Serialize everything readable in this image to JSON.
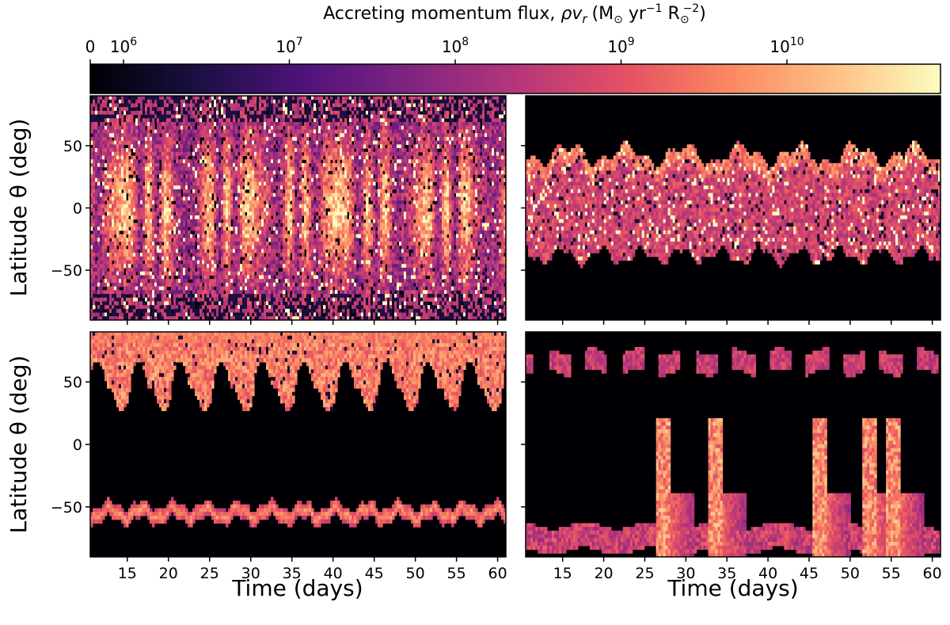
{
  "colorbar": {
    "title_main": "Accreting momentum flux, ",
    "title_var": "ρv",
    "title_sub": "r",
    "title_units": "(M",
    "title_units_rest": " yr",
    "title_exp1": "−1",
    "title_r": " R",
    "title_exp2": "−2",
    "title_close": ")",
    "colormap": "magma",
    "scale": "symlog",
    "ticks": [
      {
        "label": "0",
        "value": 0
      },
      {
        "label": "10",
        "exp": "6",
        "value": 1000000
      },
      {
        "label": "10",
        "exp": "7",
        "value": 10000000
      },
      {
        "label": "10",
        "exp": "8",
        "value": 100000000
      },
      {
        "label": "10",
        "exp": "9",
        "value": 1000000000
      },
      {
        "label": "10",
        "exp": "10",
        "value": 10000000000
      }
    ]
  },
  "chart_data": [
    {
      "type": "heatmap",
      "panel": "top-left",
      "ylabel": "Latitude θ (deg)",
      "xlabel": "",
      "xlim": [
        10.5,
        61
      ],
      "ylim": [
        -90,
        90
      ],
      "yticks": [
        50,
        0,
        -50
      ],
      "xticks": [
        15,
        20,
        25,
        30,
        35,
        40,
        45,
        50,
        55,
        60
      ],
      "xtick_labels_shown": false,
      "pattern": "accretion spread over all latitudes, brightest near equator"
    },
    {
      "type": "heatmap",
      "panel": "top-right",
      "ylabel": "",
      "xlabel": "",
      "xlim": [
        10.5,
        61
      ],
      "ylim": [
        -90,
        90
      ],
      "yticks": [
        50,
        0,
        -50
      ],
      "xticks": [
        15,
        20,
        25,
        30,
        35,
        40,
        45,
        50,
        55,
        60
      ],
      "xtick_labels_shown": false,
      "pattern": "accretion band between about -45 and +50 deg"
    },
    {
      "type": "heatmap",
      "panel": "bottom-left",
      "ylabel": "Latitude θ (deg)",
      "xlabel": "Time (days)",
      "xlim": [
        10.5,
        61
      ],
      "ylim": [
        -90,
        90
      ],
      "yticks": [
        50,
        0,
        -50
      ],
      "xticks": [
        15,
        20,
        25,
        30,
        35,
        40,
        45,
        50,
        55,
        60
      ],
      "xtick_labels_shown": true,
      "pattern": "bright northern band 40-90 deg, thin southern band near -55 deg"
    },
    {
      "type": "heatmap",
      "panel": "bottom-right",
      "ylabel": "",
      "xlabel": "Time (days)",
      "xlim": [
        10.5,
        61
      ],
      "ylim": [
        -90,
        90
      ],
      "yticks": [
        50,
        0,
        -50
      ],
      "xticks": [
        15,
        20,
        25,
        30,
        35,
        40,
        45,
        50,
        55,
        60
      ],
      "xtick_labels_shown": true,
      "pattern": "polar streams near +65 and -75 deg with episodic bright events near days 27, 33, 46, 52, 55"
    }
  ]
}
